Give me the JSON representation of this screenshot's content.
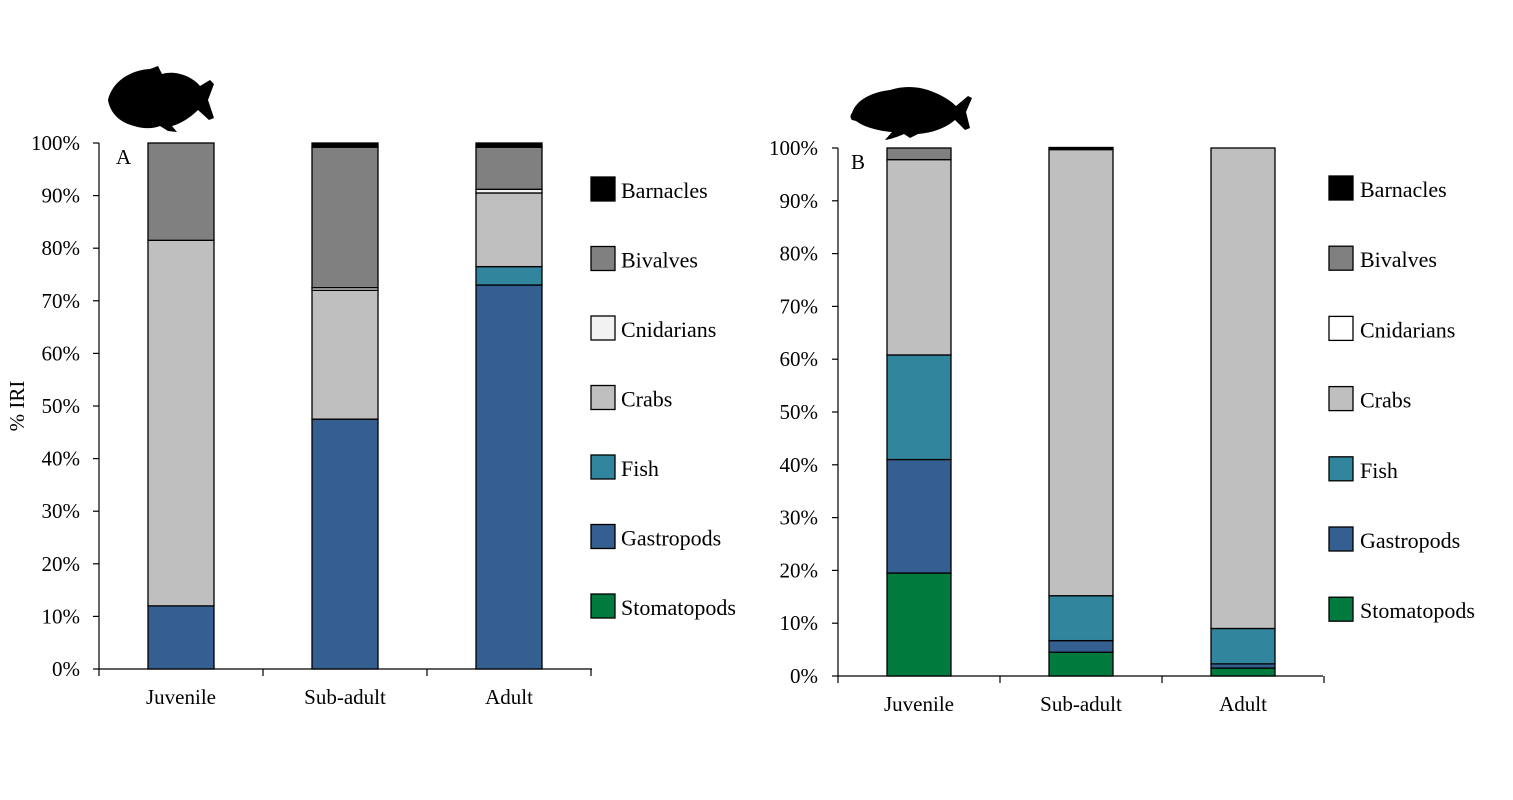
{
  "colors": {
    "Barnacles": "#000000",
    "Bivalves": "#808080",
    "Cnidarians": "#f2f2f2",
    "Cnidarians_B": "#ffffff",
    "Crabs": "#bfbfbf",
    "Fish": "#31859c",
    "Gastropods": "#355f91",
    "Stomatopods": "#007a3d"
  },
  "icons": [
    "triggerfish-silhouette-icon",
    "snapper-silhouette-icon"
  ],
  "chart_data": [
    {
      "type": "bar",
      "stacked": true,
      "panel_label": "A",
      "ylabel": "% IRI",
      "ylim": [
        0,
        100
      ],
      "yticks": [
        "0%",
        "10%",
        "20%",
        "30%",
        "40%",
        "50%",
        "60%",
        "70%",
        "80%",
        "90%",
        "100%"
      ],
      "categories": [
        "Juvenile",
        "Sub-adult",
        "Adult"
      ],
      "legend": [
        "Barnacles",
        "Bivalves",
        "Cnidarians",
        "Crabs",
        "Fish",
        "Gastropods",
        "Stomatopods"
      ],
      "series": [
        {
          "name": "Stomatopods",
          "values": [
            0,
            0,
            0
          ]
        },
        {
          "name": "Gastropods",
          "values": [
            12,
            47.5,
            73
          ]
        },
        {
          "name": "Fish",
          "values": [
            0,
            0,
            3.5
          ]
        },
        {
          "name": "Crabs",
          "values": [
            69.5,
            24.5,
            14
          ]
        },
        {
          "name": "Cnidarians",
          "values": [
            0,
            0.5,
            0.7
          ]
        },
        {
          "name": "Bivalves",
          "values": [
            18.5,
            26.7,
            8
          ]
        },
        {
          "name": "Barnacles",
          "values": [
            0,
            0.8,
            0.8
          ]
        }
      ]
    },
    {
      "type": "bar",
      "stacked": true,
      "panel_label": "B",
      "ylabel": "",
      "ylim": [
        0,
        100
      ],
      "yticks": [
        "0%",
        "10%",
        "20%",
        "30%",
        "40%",
        "50%",
        "60%",
        "70%",
        "80%",
        "90%",
        "100%"
      ],
      "categories": [
        "Juvenile",
        "Sub-adult",
        "Adult"
      ],
      "legend": [
        "Barnacles",
        "Bivalves",
        "Cnidarians",
        "Crabs",
        "Fish",
        "Gastropods",
        "Stomatopods"
      ],
      "series": [
        {
          "name": "Stomatopods",
          "values": [
            19.5,
            4.5,
            1.5
          ]
        },
        {
          "name": "Gastropods",
          "values": [
            21.5,
            2.2,
            0.8
          ]
        },
        {
          "name": "Fish",
          "values": [
            19.8,
            8.5,
            6.7
          ]
        },
        {
          "name": "Crabs",
          "values": [
            37,
            84.5,
            91
          ]
        },
        {
          "name": "Cnidarians",
          "values": [
            0,
            0,
            0
          ]
        },
        {
          "name": "Bivalves",
          "values": [
            2.2,
            0,
            0
          ]
        },
        {
          "name": "Barnacles",
          "values": [
            0,
            0.4,
            0
          ]
        }
      ]
    }
  ]
}
